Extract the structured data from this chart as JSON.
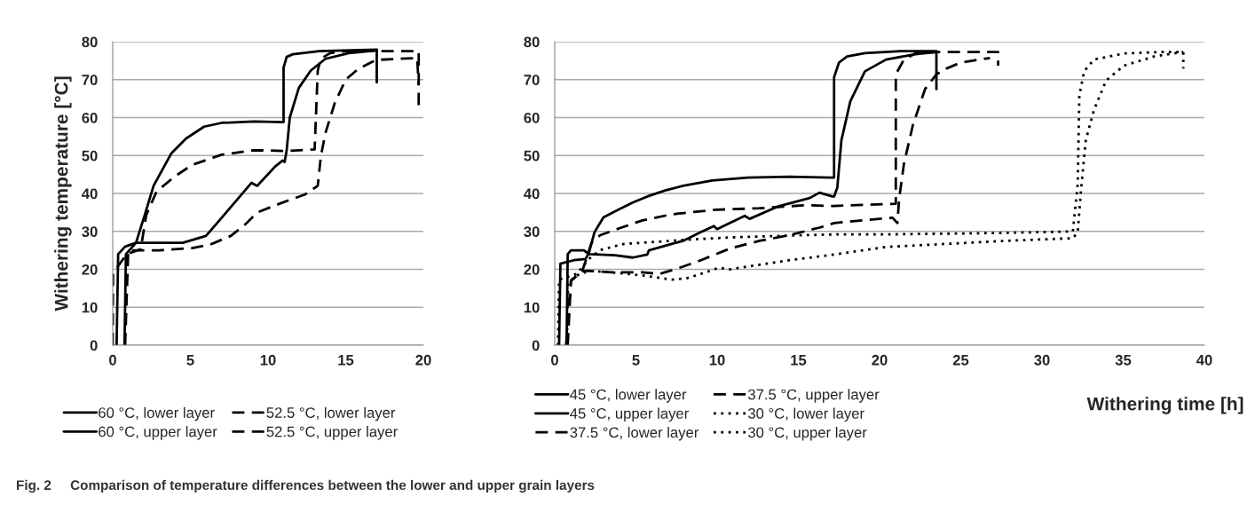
{
  "chart_data": [
    {
      "type": "line",
      "ylabel": "Withering temperature [°C]",
      "xlim": [
        0,
        20
      ],
      "xticks": [
        0,
        5,
        10,
        15,
        20
      ],
      "ylim": [
        0,
        80
      ],
      "yticks": [
        0,
        10,
        20,
        30,
        40,
        50,
        60,
        70,
        80
      ],
      "grid": "y",
      "legend": "bottom",
      "annotations": [
        "Fig. 2     Comparison of temperature differences between the lower and upper grain layers"
      ],
      "series": [
        {
          "name": "60 °C, lower layer",
          "color": "#000000",
          "line_style": "solid",
          "x": [
            0.25,
            0.35,
            0.8,
            1.5,
            2.06,
            2.63,
            3.78,
            4.73,
            5.88,
            7.0,
            9.1,
            11.0,
            11.0,
            11.2,
            11.6,
            13.3,
            17.0,
            17.0
          ],
          "values": [
            0,
            24,
            26,
            27,
            34.3,
            42,
            50.6,
            54.5,
            57.6,
            58.6,
            59,
            58.8,
            73.2,
            76,
            76.7,
            77.5,
            77.9,
            69.3
          ]
        },
        {
          "name": "60 °C, upper layer",
          "color": "#000000",
          "line_style": "solid",
          "x": [
            0.76,
            0.85,
            1.5,
            4.5,
            6.0,
            6.83,
            7.98,
            8.93,
            9.3,
            10.46,
            10.94,
            11.07,
            11.2,
            11.4,
            11.98,
            12.75,
            13.7,
            15.2,
            17.0
          ],
          "values": [
            0,
            24,
            27,
            27,
            28.8,
            32.7,
            38.2,
            42.8,
            42,
            47.1,
            48.7,
            48.3,
            51.4,
            60,
            67.8,
            72.4,
            75.5,
            77,
            77.7
          ]
        },
        {
          "name": "52.5 °C, lower layer",
          "color": "#000000",
          "line_style": "dashed",
          "x": [
            0.0,
            0.02,
            0.9,
            1.8,
            2.16,
            2.82,
            3.97,
            5.1,
            7.0,
            9.1,
            11.2,
            13.0,
            13.2,
            13.4,
            14.0,
            15.0,
            17.0,
            19.7,
            19.7
          ],
          "values": [
            0,
            19,
            24,
            25.3,
            34.3,
            40.5,
            44.4,
            47.5,
            50.2,
            51.4,
            51.2,
            51.6,
            72.4,
            75.5,
            77,
            77.5,
            77.5,
            77.5,
            63
          ]
        },
        {
          "name": "52.5 °C, upper layer",
          "color": "#000000",
          "line_style": "dashed",
          "x": [
            0.8,
            1.0,
            3.0,
            5.1,
            6.26,
            7.6,
            8.55,
            9.3,
            10.8,
            12.37,
            13.2,
            13.4,
            13.7,
            14.3,
            15.0,
            15.8,
            16.95,
            19.6,
            19.7
          ],
          "values": [
            0,
            25,
            25,
            25.6,
            26.5,
            28.8,
            31.9,
            35,
            37.4,
            39.7,
            42,
            49.8,
            56,
            63.9,
            70,
            72.8,
            75.2,
            75.7,
            68.5
          ]
        }
      ]
    },
    {
      "type": "line",
      "xlabel": "Withering time [h]",
      "xlim": [
        0,
        40
      ],
      "xticks": [
        0,
        5,
        10,
        15,
        20,
        25,
        30,
        35,
        40
      ],
      "ylim": [
        0,
        80
      ],
      "yticks": [
        0,
        10,
        20,
        30,
        40,
        50,
        60,
        70,
        80
      ],
      "grid": "y",
      "legend": "bottom",
      "series": [
        {
          "name": "45 °C, lower layer",
          "color": "#000000",
          "line_style": "solid",
          "x": [
            0.27,
            0.35,
            1.18,
            1.9,
            2.1,
            2.45,
            3.0,
            3.73,
            4.8,
            5.7,
            6.8,
            7.9,
            9.7,
            11.9,
            14.45,
            17.0,
            17.2,
            17.2,
            17.5,
            18.0,
            19.1,
            21.3,
            23.5,
            23.5
          ],
          "values": [
            0,
            21.5,
            22.4,
            22.7,
            24.3,
            29.8,
            33.7,
            35.3,
            37.6,
            39.2,
            40.8,
            42,
            43.4,
            44.2,
            44.4,
            44.2,
            44.2,
            70.6,
            74.5,
            76.1,
            77,
            77.5,
            77.5,
            67.5
          ]
        },
        {
          "name": "45 °C, upper layer",
          "color": "#000000",
          "line_style": "solid",
          "x": [
            0.73,
            0.8,
            1.0,
            1.8,
            2.1,
            3.7,
            4.8,
            5.7,
            5.8,
            7.2,
            7.9,
            9.0,
            9.8,
            10.0,
            11.7,
            12.0,
            13.7,
            15.7,
            16.3,
            17.1,
            17.2,
            17.4,
            17.65,
            18.2,
            19.1,
            20.4,
            22.2,
            23.5
          ],
          "values": [
            0,
            24,
            25,
            25,
            24,
            23.7,
            23.1,
            23.9,
            25,
            26.7,
            27.5,
            29.8,
            31.4,
            30.6,
            34.1,
            33.3,
            36.5,
            38.8,
            40.2,
            39.2,
            39.2,
            41.6,
            54,
            64.3,
            72.2,
            75.3,
            76.7,
            77.3
          ]
        },
        {
          "name": "37.5 °C, lower layer",
          "color": "#000000",
          "line_style": "dashed",
          "x": [
            0.8,
            1.0,
            1.7,
            2.27,
            2.8,
            4.1,
            5.4,
            7.2,
            9.9,
            12.6,
            15.4,
            17.2,
            21.0,
            21.0,
            21.5,
            22.2,
            23.5,
            24.6,
            25.9,
            26.8,
            27.3,
            27.3
          ],
          "values": [
            0,
            17,
            19.6,
            27,
            29,
            31,
            32.9,
            34.5,
            35.7,
            36.1,
            36.9,
            36.7,
            37.3,
            71.4,
            75.3,
            76.9,
            77.3,
            77.3,
            77.3,
            77.3,
            77.3,
            73.7
          ]
        },
        {
          "name": "37.5 °C, upper layer",
          "color": "#000000",
          "line_style": "dashed",
          "x": [
            0.7,
            1.0,
            1.7,
            2.1,
            3.5,
            5.4,
            6.45,
            7.7,
            9.0,
            10.8,
            12.6,
            14.45,
            16.3,
            17.2,
            20.8,
            21.1,
            21.2,
            21.5,
            22.05,
            22.8,
            23.5,
            24.1,
            25.0,
            26.8
          ],
          "values": [
            0,
            17,
            19.5,
            19.6,
            19.2,
            19.2,
            18.8,
            20.4,
            22.4,
            25.5,
            27.5,
            29,
            31,
            32.2,
            33.6,
            32.2,
            38.4,
            47.8,
            58,
            67.5,
            71.4,
            72.9,
            74.5,
            75.7
          ]
        },
        {
          "name": "30 °C, lower layer",
          "color": "#000000",
          "line_style": "dotted",
          "x": [
            0.2,
            0.27,
            1.36,
            2.1,
            2.8,
            4.27,
            6.1,
            8.1,
            10.8,
            14.45,
            17.2,
            20.4,
            27.7,
            31.9,
            32.2,
            32.3,
            32.6,
            33.2,
            35.05,
            37.4,
            38.7,
            38.7
          ],
          "values": [
            0,
            17.3,
            18.8,
            22.7,
            25.1,
            26.7,
            27.2,
            27.8,
            28.4,
            28.9,
            29.2,
            29.2,
            29.6,
            30,
            42.4,
            65.9,
            72.2,
            75.3,
            76.9,
            77.3,
            77.3,
            72.9
          ]
        },
        {
          "name": "30 °C, upper layer",
          "color": "#000000",
          "line_style": "dotted",
          "x": [
            0.75,
            0.82,
            1.36,
            2.1,
            3.5,
            5.4,
            7.2,
            8.1,
            9.0,
            10.1,
            10.8,
            12.6,
            14.45,
            17.2,
            20.4,
            24.1,
            27.7,
            31.9,
            32.2,
            32.4,
            32.7,
            33.2,
            33.95,
            35.05,
            36.9,
            38.7
          ],
          "values": [
            0,
            16.5,
            18.4,
            19.6,
            19.2,
            18.4,
            17.3,
            17.6,
            18.8,
            20.4,
            20,
            21.2,
            22.4,
            23.9,
            25.9,
            26.7,
            27.5,
            28.2,
            29.8,
            40.8,
            54.1,
            62,
            69.8,
            73.7,
            76.1,
            77.3
          ]
        }
      ]
    }
  ]
}
